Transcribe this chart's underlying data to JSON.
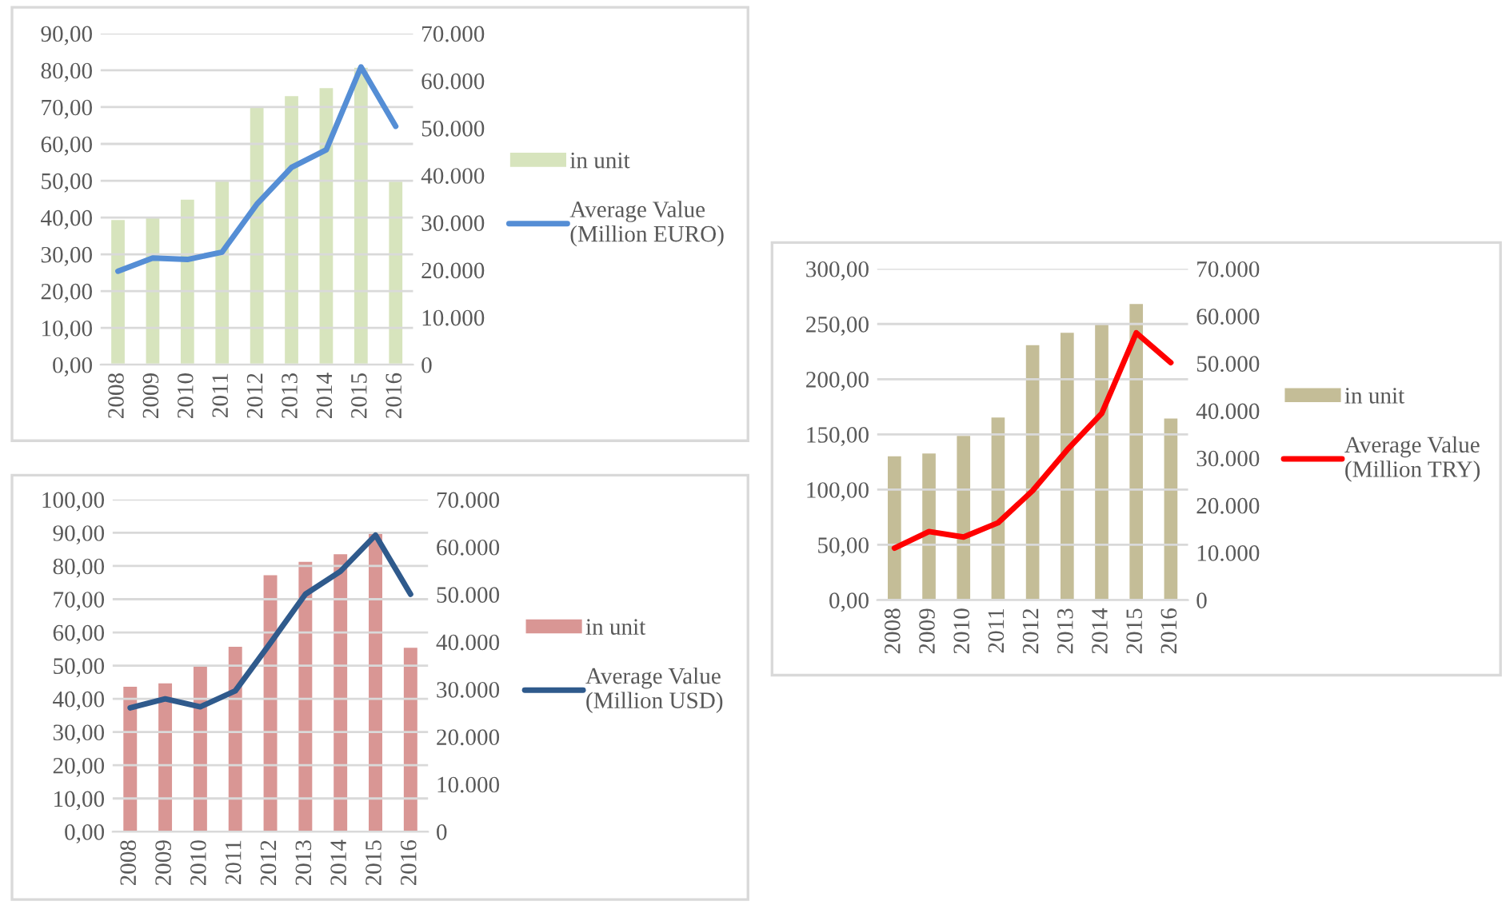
{
  "chart_data": [
    {
      "type": "bar",
      "categories": [
        "2008",
        "2009",
        "2010",
        "2011",
        "2012",
        "2013",
        "2014",
        "2015",
        "2016"
      ],
      "series": [
        {
          "name": "in unit",
          "axis": "y2",
          "color": "#d7e4bd",
          "values": [
            30800,
            31200,
            35100,
            39100,
            54500,
            57000,
            58700,
            63000,
            38900
          ]
        },
        {
          "name": "Average Value\n(Million EURO)",
          "type": "line",
          "color": "#558ed5",
          "values": [
            25.4,
            29.0,
            28.6,
            30.6,
            43.6,
            53.6,
            58.4,
            80.9,
            64.8
          ]
        }
      ],
      "ylim": [
        0,
        90
      ],
      "yticks": [
        {
          "value": 0,
          "label": "0,00"
        },
        {
          "value": 10,
          "label": "10,00"
        },
        {
          "value": 20,
          "label": "20,00"
        },
        {
          "value": 30,
          "label": "30,00"
        },
        {
          "value": 40,
          "label": "40,00"
        },
        {
          "value": 50,
          "label": "50,00"
        },
        {
          "value": 60,
          "label": "60,00"
        },
        {
          "value": 70,
          "label": "70,00"
        },
        {
          "value": 80,
          "label": "80,00"
        },
        {
          "value": 90,
          "label": "90,00"
        }
      ],
      "y2lim": [
        0,
        70000
      ],
      "y2ticks": [
        0,
        {
          "value": 10000,
          "label": "10.000"
        },
        {
          "value": 20000,
          "label": "20.000"
        },
        {
          "value": 30000,
          "label": "30.000"
        },
        {
          "value": 40000,
          "label": "40.000"
        },
        {
          "value": 50000,
          "label": "50.000"
        },
        {
          "value": 60000,
          "label": "60.000"
        },
        {
          "value": 70000,
          "label": "70.000"
        }
      ],
      "grid": "y",
      "legend": "right"
    },
    {
      "type": "bar",
      "categories": [
        "2008",
        "2009",
        "2010",
        "2011",
        "2012",
        "2013",
        "2014",
        "2015",
        "2016"
      ],
      "series": [
        {
          "name": "in unit",
          "axis": "y2",
          "color": "#d99694",
          "values": [
            30800,
            31500,
            35000,
            39200,
            54300,
            57100,
            58700,
            63000,
            39000
          ]
        },
        {
          "name": "Average Value\n(Million USD)",
          "type": "line",
          "color": "#2f5a8c",
          "values": [
            37.3,
            40.0,
            37.6,
            42.4,
            56.8,
            71.5,
            78.4,
            89.3,
            71.5
          ]
        }
      ],
      "ylim": [
        0,
        100
      ],
      "yticks": [
        {
          "value": 0,
          "label": "0,00"
        },
        {
          "value": 10,
          "label": "10,00"
        },
        {
          "value": 20,
          "label": "20,00"
        },
        {
          "value": 30,
          "label": "30,00"
        },
        {
          "value": 40,
          "label": "40,00"
        },
        {
          "value": 50,
          "label": "50,00"
        },
        {
          "value": 60,
          "label": "60,00"
        },
        {
          "value": 70,
          "label": "70,00"
        },
        {
          "value": 80,
          "label": "80,00"
        },
        {
          "value": 90,
          "label": "90,00"
        },
        {
          "value": 100,
          "label": "100,00"
        }
      ],
      "y2lim": [
        0,
        70000
      ],
      "y2ticks": [
        0,
        {
          "value": 10000,
          "label": "10.000"
        },
        {
          "value": 20000,
          "label": "20.000"
        },
        {
          "value": 30000,
          "label": "30.000"
        },
        {
          "value": 40000,
          "label": "40.000"
        },
        {
          "value": 50000,
          "label": "50.000"
        },
        {
          "value": 60000,
          "label": "60.000"
        },
        {
          "value": 70000,
          "label": "70.000"
        }
      ],
      "grid": "y",
      "legend": "right"
    },
    {
      "type": "bar",
      "categories": [
        "2008",
        "2009",
        "2010",
        "2011",
        "2012",
        "2013",
        "2014",
        "2015",
        "2016"
      ],
      "series": [
        {
          "name": "in unit",
          "axis": "y2",
          "color": "#c4bd97",
          "values": [
            30600,
            31200,
            34900,
            38800,
            54100,
            56700,
            58500,
            62800,
            38600
          ]
        },
        {
          "name": "Average Value\n(Million TRY)",
          "type": "line",
          "color": "#ff0000",
          "values": [
            47,
            62,
            57,
            70,
            99,
            136,
            169,
            242,
            215
          ]
        }
      ],
      "ylim": [
        0,
        300
      ],
      "yticks": [
        {
          "value": 0,
          "label": "0,00"
        },
        {
          "value": 50,
          "label": "50,00"
        },
        {
          "value": 100,
          "label": "100,00"
        },
        {
          "value": 150,
          "label": "150,00"
        },
        {
          "value": 200,
          "label": "200,00"
        },
        {
          "value": 250,
          "label": "250,00"
        },
        {
          "value": 300,
          "label": "300,00"
        }
      ],
      "y2lim": [
        0,
        70000
      ],
      "y2ticks": [
        0,
        {
          "value": 10000,
          "label": "10.000"
        },
        {
          "value": 20000,
          "label": "20.000"
        },
        {
          "value": 30000,
          "label": "30.000"
        },
        {
          "value": 40000,
          "label": "40.000"
        },
        {
          "value": 50000,
          "label": "50.000"
        },
        {
          "value": 60000,
          "label": "60.000"
        },
        {
          "value": 70000,
          "label": "70.000"
        }
      ],
      "grid": "y",
      "legend": "right"
    }
  ]
}
